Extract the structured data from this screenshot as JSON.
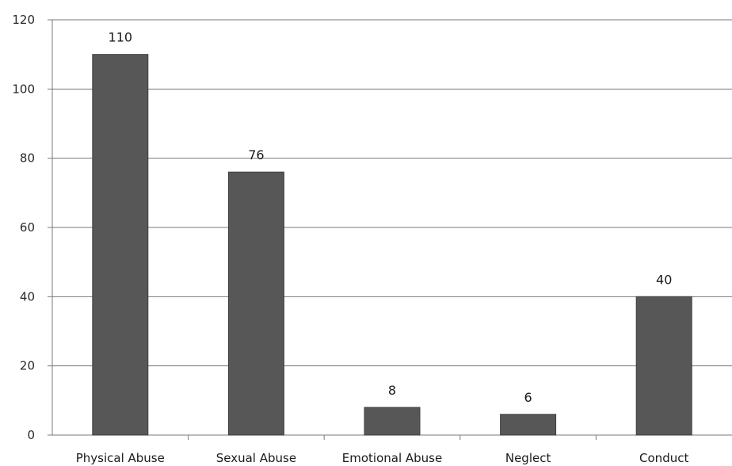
{
  "chart_data": {
    "type": "bar",
    "title": "",
    "xlabel": "",
    "ylabel": "",
    "categories": [
      "Physical Abuse",
      "Sexual Abuse",
      "Emotional Abuse",
      "Neglect",
      "Conduct"
    ],
    "values": [
      110,
      76,
      8,
      6,
      40
    ],
    "data_labels": [
      "110",
      "76",
      "8",
      "6",
      "40"
    ],
    "ylim": [
      0,
      120
    ],
    "yticks": [
      0,
      20,
      40,
      60,
      80,
      100,
      120
    ],
    "ytick_labels": [
      "0",
      "20",
      "40",
      "60",
      "80",
      "100",
      "120"
    ],
    "grid": true,
    "legend": "none",
    "colors": {
      "bar": "#575757",
      "bar_edge": "#3f3f3f",
      "grid": "#7a7a7a",
      "axis": "#7a7a7a"
    }
  }
}
